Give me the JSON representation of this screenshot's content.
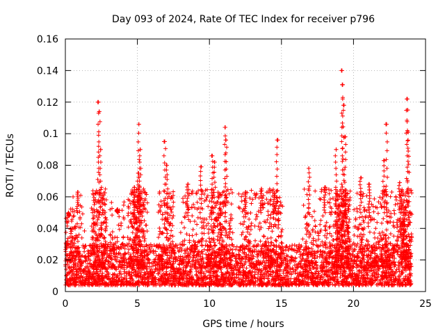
{
  "chart_data": {
    "type": "scatter",
    "title": "Day 093 of 2024, Rate Of TEC Index for receiver p796",
    "xlabel": "GPS time / hours",
    "ylabel": "ROTI / TECUs",
    "xlim": [
      0,
      25
    ],
    "ylim": [
      0,
      0.16
    ],
    "x_ticks": [
      0,
      5,
      10,
      15,
      20,
      25
    ],
    "y_ticks": [
      0,
      0.02,
      0.04,
      0.06,
      0.08,
      0.1,
      0.12,
      0.14,
      0.16
    ],
    "x_tick_labels": [
      "0",
      "5",
      "10",
      "15",
      "20",
      "25"
    ],
    "y_tick_labels": [
      "0",
      "0.02",
      "0.04",
      "0.06",
      "0.08",
      "0.1",
      "0.12",
      "0.14",
      "0.16"
    ],
    "grid": true,
    "marker": "+",
    "series_color": "#ff0000",
    "series": [
      {
        "name": "ROTI",
        "peaks": [
          {
            "x": 0.25,
            "y": 0.048
          },
          {
            "x": 0.85,
            "y": 0.063
          },
          {
            "x": 2.3,
            "y": 0.12
          },
          {
            "x": 2.35,
            "y": 0.114
          },
          {
            "x": 2.45,
            "y": 0.09
          },
          {
            "x": 3.6,
            "y": 0.052
          },
          {
            "x": 4.8,
            "y": 0.066
          },
          {
            "x": 5.1,
            "y": 0.106
          },
          {
            "x": 5.2,
            "y": 0.09
          },
          {
            "x": 5.05,
            "y": 0.075
          },
          {
            "x": 6.9,
            "y": 0.095
          },
          {
            "x": 7.05,
            "y": 0.08
          },
          {
            "x": 8.5,
            "y": 0.068
          },
          {
            "x": 9.4,
            "y": 0.079
          },
          {
            "x": 10.2,
            "y": 0.086
          },
          {
            "x": 10.35,
            "y": 0.082
          },
          {
            "x": 11.1,
            "y": 0.104
          },
          {
            "x": 11.15,
            "y": 0.096
          },
          {
            "x": 12.5,
            "y": 0.063
          },
          {
            "x": 13.6,
            "y": 0.065
          },
          {
            "x": 14.5,
            "y": 0.062
          },
          {
            "x": 14.7,
            "y": 0.096
          },
          {
            "x": 16.9,
            "y": 0.078
          },
          {
            "x": 18.0,
            "y": 0.066
          },
          {
            "x": 18.8,
            "y": 0.09
          },
          {
            "x": 19.2,
            "y": 0.14
          },
          {
            "x": 19.25,
            "y": 0.131
          },
          {
            "x": 19.3,
            "y": 0.118
          },
          {
            "x": 19.4,
            "y": 0.098
          },
          {
            "x": 20.5,
            "y": 0.072
          },
          {
            "x": 21.1,
            "y": 0.068
          },
          {
            "x": 22.1,
            "y": 0.083
          },
          {
            "x": 22.3,
            "y": 0.106
          },
          {
            "x": 23.2,
            "y": 0.069
          },
          {
            "x": 23.7,
            "y": 0.122
          },
          {
            "x": 23.75,
            "y": 0.115
          },
          {
            "x": 23.8,
            "y": 0.101
          }
        ]
      }
    ]
  }
}
